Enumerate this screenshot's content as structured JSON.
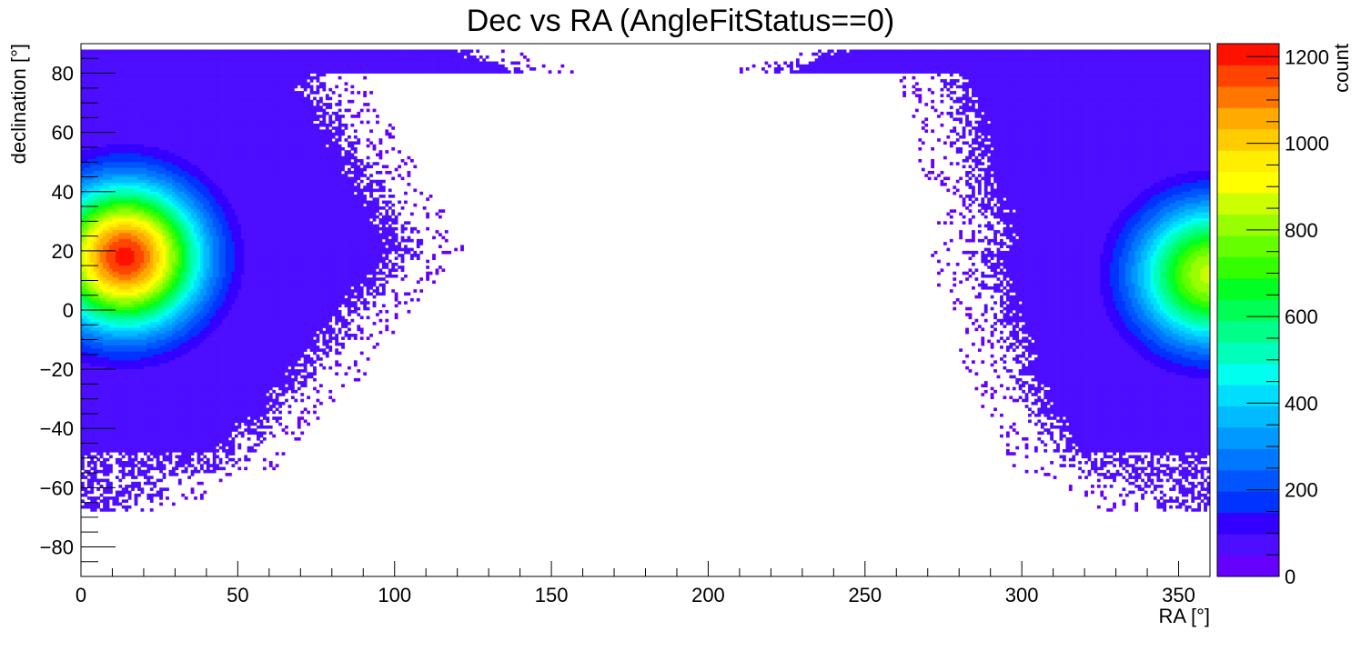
{
  "chart_data": {
    "type": "heatmap",
    "title": "Dec vs RA (AngleFitStatus==0)",
    "xlabel": "RA [°]",
    "ylabel": "declination [°]",
    "zlabel": "count",
    "xlim": [
      0,
      360
    ],
    "ylim": [
      -90,
      90
    ],
    "zlim": [
      0,
      1230
    ],
    "x_ticks": [
      "0",
      "50",
      "100",
      "150",
      "200",
      "250",
      "300",
      "350"
    ],
    "y_ticks": [
      "−80",
      "−60",
      "−40",
      "−20",
      "0",
      "20",
      "40",
      "60",
      "80"
    ],
    "z_ticks": [
      "0",
      "200",
      "400",
      "600",
      "800",
      "1000",
      "1200"
    ],
    "grid": false,
    "colorbar": "right",
    "peak": {
      "ra": 14,
      "dec": 18,
      "count": 1200
    },
    "hotspot_right_edge": {
      "ra": 360,
      "dec": 12,
      "count": 850
    },
    "empty_region_note_ra_range": [
      110,
      270
    ],
    "palette": [
      "#6600ff",
      "#4d0dff",
      "#3300ff",
      "#0033ff",
      "#0055ff",
      "#0077ff",
      "#0099ff",
      "#00bbff",
      "#00ddff",
      "#00ffee",
      "#00ffbb",
      "#00ff88",
      "#00ff55",
      "#00ff22",
      "#33ff00",
      "#66ff00",
      "#99ff00",
      "#ccff00",
      "#ffff00",
      "#ffee00",
      "#ffcc00",
      "#ffaa00",
      "#ff7700",
      "#ff4400",
      "#ff1100"
    ]
  }
}
